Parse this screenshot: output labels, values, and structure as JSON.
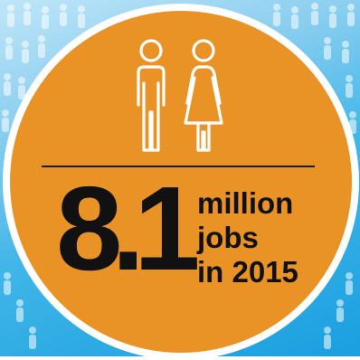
{
  "background": {
    "color_top": "#bfe6f8",
    "color_bottom": "#1a9fe0",
    "pattern_icon": "person-silhouette-icon"
  },
  "badge": {
    "ring_color": "#ffffff",
    "fill_color": "#e99326",
    "text_color": "#111111",
    "icons": [
      "male-person-icon",
      "female-person-icon"
    ],
    "number": "8.1",
    "caption_lines": [
      "million",
      "jobs",
      "in 2015"
    ]
  }
}
